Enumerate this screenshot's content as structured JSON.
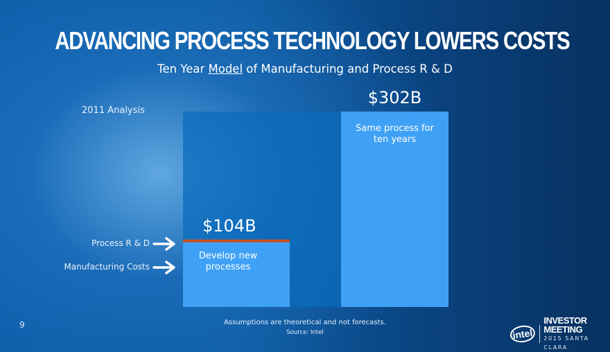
{
  "header": {
    "title": "ADVANCING PROCESS TECHNOLOGY LOWERS COSTS",
    "subtitle_pre": "Ten Year ",
    "subtitle_underlined": "Model",
    "subtitle_post": " of Manufacturing and Process R & D"
  },
  "analysis_label": "2011 Analysis",
  "chart_data": {
    "type": "bar",
    "unit": "$B",
    "categories": [
      "Develop new processes",
      "Same process for ten years"
    ],
    "series": [
      {
        "name": "Process R & D",
        "values": [
          4,
          0
        ],
        "color": "#c8501e"
      },
      {
        "name": "Manufacturing Costs",
        "values": [
          100,
          302
        ],
        "color": "#3fa1f5"
      }
    ],
    "totals": [
      104,
      302
    ],
    "total_labels": [
      "$104B",
      "$302B"
    ],
    "bar_notes": [
      [
        "Develop new",
        "processes"
      ],
      [
        "Same process for",
        "ten years"
      ]
    ],
    "ylim": [
      0,
      302
    ],
    "reference_bar": {
      "value": 302,
      "color": "#0a6cbc"
    },
    "legend": [
      "Process R & D",
      "Manufacturing Costs"
    ]
  },
  "footer": {
    "page_number": "9",
    "note": "Assumptions are theoretical and not forecasts.",
    "source": "Source: Intel",
    "logo_text": "intel",
    "event_name": "INVESTOR MEETING",
    "event_place": "2015 SANTA CLARA"
  }
}
